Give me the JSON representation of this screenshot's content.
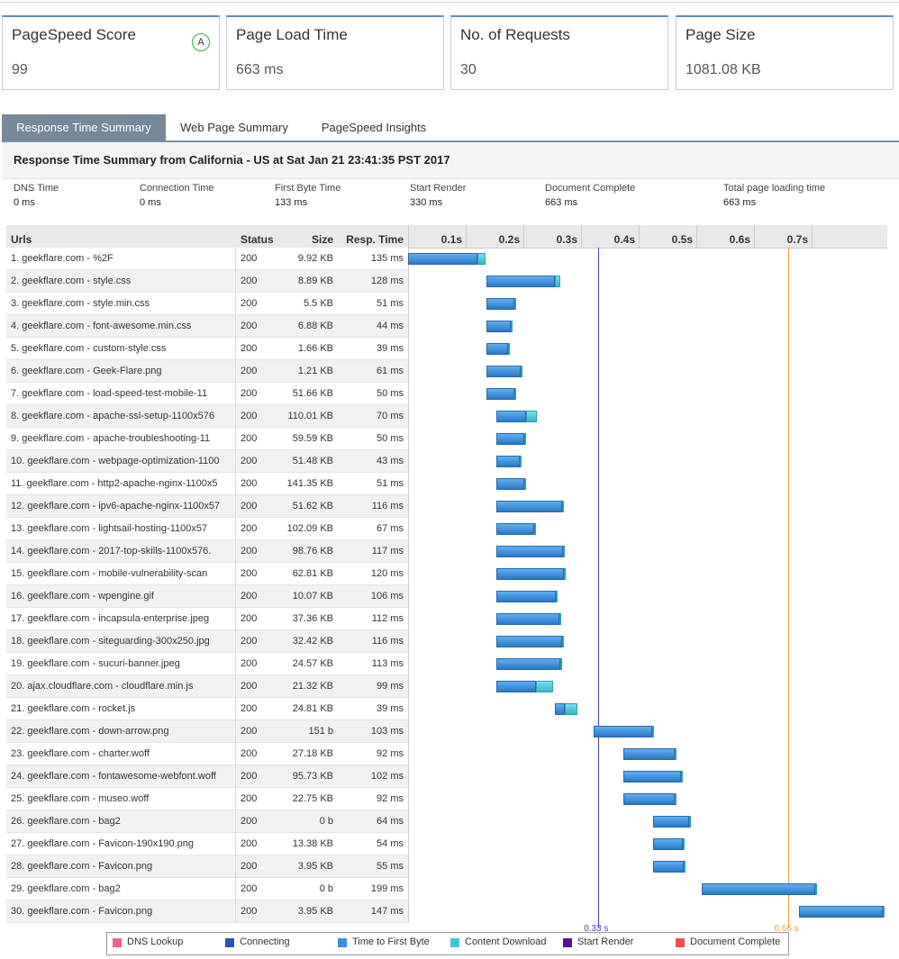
{
  "cards": [
    {
      "label": "PageSpeed Score",
      "value": "99",
      "grade": "A"
    },
    {
      "label": "Page Load Time",
      "value": "663 ms"
    },
    {
      "label": "No. of Requests",
      "value": "30"
    },
    {
      "label": "Page Size",
      "value": "1081.08 KB"
    }
  ],
  "tabs": [
    "Response Time Summary",
    "Web Page Summary",
    "PageSpeed Insights"
  ],
  "summary": {
    "title": "Response Time Summary from California - US at Sat Jan 21 23:41:35 PST 2017",
    "metrics": [
      {
        "label": "DNS Time",
        "value": "0 ms"
      },
      {
        "label": "Connection Time",
        "value": "0 ms"
      },
      {
        "label": "First Byte Time",
        "value": "133 ms"
      },
      {
        "label": "Start Render",
        "value": "330 ms"
      },
      {
        "label": "Document Complete",
        "value": "663 ms"
      },
      {
        "label": "Total page loading time",
        "value": "663 ms"
      }
    ]
  },
  "table": {
    "headers": [
      "Urls",
      "Status",
      "Size",
      "Resp. Time"
    ],
    "rows": [
      [
        "1. geekflare.com - %2F",
        "200",
        "9.92 KB",
        "135 ms"
      ],
      [
        "2. geekflare.com - style.css",
        "200",
        "8.89 KB",
        "128 ms"
      ],
      [
        "3. geekflare.com - style.min.css",
        "200",
        "5.5 KB",
        "51 ms"
      ],
      [
        "4. geekflare.com - font-awesome.min.css",
        "200",
        "6.88 KB",
        "44 ms"
      ],
      [
        "5. geekflare.com - custom-style.css",
        "200",
        "1.66 KB",
        "39 ms"
      ],
      [
        "6. geekflare.com - Geek-Flare.png",
        "200",
        "1.21 KB",
        "61 ms"
      ],
      [
        "7. geekflare.com - load-speed-test-mobile-11",
        "200",
        "51.66 KB",
        "50 ms"
      ],
      [
        "8. geekflare.com - apache-ssl-setup-1100x576",
        "200",
        "110.01 KB",
        "70 ms"
      ],
      [
        "9. geekflare.com - apache-troubleshooting-11",
        "200",
        "59.59 KB",
        "50 ms"
      ],
      [
        "10. geekflare.com - webpage-optimization-1100",
        "200",
        "51.48 KB",
        "43 ms"
      ],
      [
        "11. geekflare.com - http2-apache-nginx-1100x5",
        "200",
        "141.35 KB",
        "51 ms"
      ],
      [
        "12. geekflare.com - ipv6-apache-nginx-1100x57",
        "200",
        "51.62 KB",
        "116 ms"
      ],
      [
        "13. geekflare.com - lightsail-hosting-1100x57",
        "200",
        "102.09 KB",
        "67 ms"
      ],
      [
        "14. geekflare.com - 2017-top-skills-1100x576.",
        "200",
        "98.76 KB",
        "117 ms"
      ],
      [
        "15. geekflare.com - mobile-vulnerability-scan",
        "200",
        "62.81 KB",
        "120 ms"
      ],
      [
        "16. geekflare.com - wpengine.gif",
        "200",
        "10.07 KB",
        "106 ms"
      ],
      [
        "17. geekflare.com - incapsula-enterprise.jpeg",
        "200",
        "37.36 KB",
        "112 ms"
      ],
      [
        "18. geekflare.com - siteguarding-300x250.jpg",
        "200",
        "32.42 KB",
        "116 ms"
      ],
      [
        "19. geekflare.com - sucuri-banner.jpeg",
        "200",
        "24.57 KB",
        "113 ms"
      ],
      [
        "20. ajax.cloudflare.com - cloudflare.min.js",
        "200",
        "21.32 KB",
        "99 ms"
      ],
      [
        "21. geekflare.com - rocket.js",
        "200",
        "24.81 KB",
        "39 ms"
      ],
      [
        "22. geekflare.com - down-arrow.png",
        "200",
        "151 b",
        "103 ms"
      ],
      [
        "23. geekflare.com - charter.woff",
        "200",
        "27.18 KB",
        "92 ms"
      ],
      [
        "24. geekflare.com - fontawesome-webfont.woff",
        "200",
        "95.73 KB",
        "102 ms"
      ],
      [
        "25. geekflare.com - museo.woff",
        "200",
        "22.75 KB",
        "92 ms"
      ],
      [
        "26. geekflare.com - bag2",
        "200",
        "0 b",
        "64 ms"
      ],
      [
        "27. geekflare.com - Favicon-190x190.png",
        "200",
        "13.38 KB",
        "54 ms"
      ],
      [
        "28. geekflare.com - Favicon.png",
        "200",
        "3.95 KB",
        "55 ms"
      ],
      [
        "29. geekflare.com - bag2",
        "200",
        "0 b",
        "199 ms"
      ],
      [
        "30. geekflare.com - Favicon.png",
        "200",
        "3.95 KB",
        "147 ms"
      ]
    ]
  },
  "waterfall": {
    "ticks": [
      {
        "value": 100,
        "label": "0.1s"
      },
      {
        "value": 200,
        "label": "0.2s"
      },
      {
        "value": 300,
        "label": "0.3s"
      },
      {
        "value": 400,
        "label": "0.4s"
      },
      {
        "value": 500,
        "label": "0.5s"
      },
      {
        "value": 600,
        "label": "0.6s"
      },
      {
        "value": 700,
        "label": "0.7s"
      }
    ],
    "rows": [
      {
        "start": 0,
        "ttfb": 120,
        "download": 15
      },
      {
        "start": 136,
        "ttfb": 119,
        "download": 9
      },
      {
        "start": 136,
        "ttfb": 49,
        "download": 2
      },
      {
        "start": 136,
        "ttfb": 42,
        "download": 2
      },
      {
        "start": 136,
        "ttfb": 37,
        "download": 2
      },
      {
        "start": 136,
        "ttfb": 59,
        "download": 2
      },
      {
        "start": 136,
        "ttfb": 48,
        "download": 2
      },
      {
        "start": 153,
        "ttfb": 52,
        "download": 18
      },
      {
        "start": 153,
        "ttfb": 48,
        "download": 2
      },
      {
        "start": 153,
        "ttfb": 41,
        "download": 2
      },
      {
        "start": 153,
        "ttfb": 49,
        "download": 2
      },
      {
        "start": 153,
        "ttfb": 114,
        "download": 2
      },
      {
        "start": 153,
        "ttfb": 65,
        "download": 2
      },
      {
        "start": 153,
        "ttfb": 115,
        "download": 2
      },
      {
        "start": 153,
        "ttfb": 118,
        "download": 2
      },
      {
        "start": 153,
        "ttfb": 104,
        "download": 2
      },
      {
        "start": 153,
        "ttfb": 110,
        "download": 2
      },
      {
        "start": 153,
        "ttfb": 114,
        "download": 2
      },
      {
        "start": 153,
        "ttfb": 111,
        "download": 2
      },
      {
        "start": 153,
        "ttfb": 69,
        "download": 30
      },
      {
        "start": 255,
        "ttfb": 17,
        "download": 22
      },
      {
        "start": 322,
        "ttfb": 101,
        "download": 2
      },
      {
        "start": 373,
        "ttfb": 90,
        "download": 2
      },
      {
        "start": 373,
        "ttfb": 100,
        "download": 2
      },
      {
        "start": 373,
        "ttfb": 90,
        "download": 2
      },
      {
        "start": 425,
        "ttfb": 62,
        "download": 2
      },
      {
        "start": 425,
        "ttfb": 52,
        "download": 2
      },
      {
        "start": 425,
        "ttfb": 53,
        "download": 2
      },
      {
        "start": 509,
        "ttfb": 197,
        "download": 2
      },
      {
        "start": 678,
        "ttfb": 145,
        "download": 2
      }
    ],
    "markers": [
      {
        "value": 330,
        "label": "0.33 s",
        "color": "#4b3cc8"
      },
      {
        "value": 660,
        "label": "0.66 s",
        "color": "#f0a030"
      }
    ],
    "legend": [
      {
        "name": "DNS Lookup",
        "color": "#f06090"
      },
      {
        "name": "Connecting",
        "color": "#3050b0"
      },
      {
        "name": "Time to First Byte",
        "color": "#3a8fdc"
      },
      {
        "name": "Content Download",
        "color": "#40c8d8"
      },
      {
        "name": "Start Render",
        "color": "#5a1090"
      },
      {
        "name": "Document Complete",
        "color": "#f05050"
      }
    ]
  }
}
